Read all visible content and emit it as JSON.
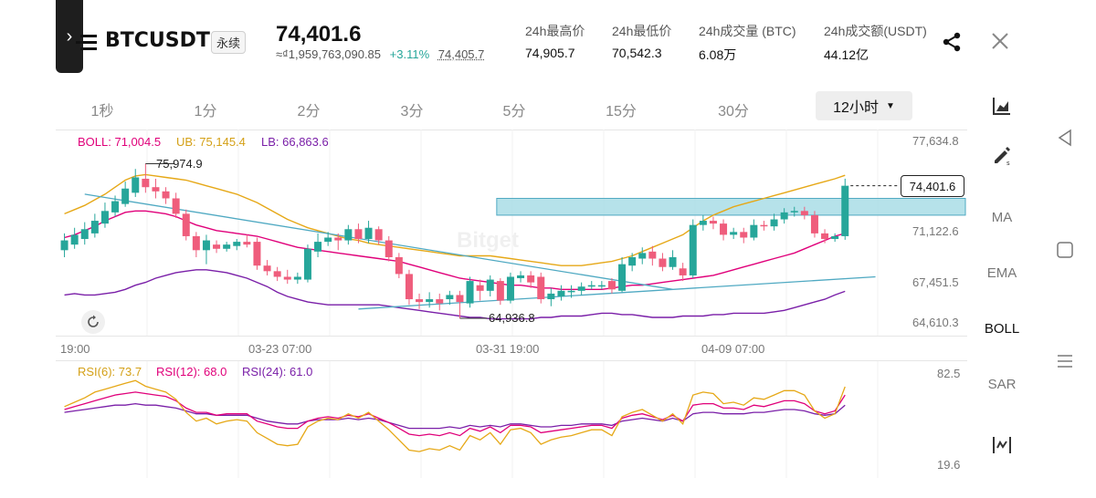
{
  "header": {
    "symbol": "BTCUSDT",
    "contract_tag": "永续",
    "last_price": "74,401.6",
    "fiat_value": "≈₫1,959,763,090.85",
    "change_pct": "+3.11%",
    "mark_price": "74,405.7",
    "stats": [
      {
        "label": "24h最高价",
        "value": "74,905.7"
      },
      {
        "label": "24h最低价",
        "value": "70,542.3"
      },
      {
        "label": "24h成交量 (BTC)",
        "value": "6.08万"
      },
      {
        "label": "24h成交额(USDT)",
        "value": "44.12亿"
      }
    ]
  },
  "timeframes": [
    "1秒",
    "1分",
    "2分",
    "3分",
    "5分",
    "15分",
    "30分"
  ],
  "active_timeframe": "12小时",
  "right_toolbar": {
    "ma": "MA",
    "ema": "EMA",
    "boll": "BOLL",
    "sar": "SAR"
  },
  "price_panel": {
    "boll_label": "BOLL: 71,004.5",
    "ub_label": "UB: 75,145.4",
    "lb_label": "LB: 66,863.6",
    "y_ticks": [
      "77,634.8",
      "71,122.6",
      "67,451.5",
      "64,610.3"
    ],
    "high_marker": "75,974.9",
    "low_marker": "64,936.8",
    "current_price_tag": "74,401.6",
    "watermark": "Bitget"
  },
  "time_axis": [
    "19:00",
    "03-23 07:00",
    "03-31 19:00",
    "04-09 07:00"
  ],
  "rsi_panel": {
    "rsi6_label": "RSI(6): 73.7",
    "rsi12_label": "RSI(12): 68.0",
    "rsi24_label": "RSI(24): 61.0",
    "y_top": "82.5",
    "y_bottom": "19.6"
  },
  "chart_data": {
    "type": "candlestick",
    "interval": "12小时",
    "price_range": [
      64610.3,
      77634.8
    ],
    "candles": [
      {
        "o": 69800,
        "c": 70500,
        "h": 71000,
        "l": 69300
      },
      {
        "o": 70200,
        "c": 70900,
        "h": 71400,
        "l": 69900
      },
      {
        "o": 70600,
        "c": 71300,
        "h": 71800,
        "l": 70200
      },
      {
        "o": 71000,
        "c": 71900,
        "h": 72400,
        "l": 70700
      },
      {
        "o": 71700,
        "c": 72600,
        "h": 73200,
        "l": 71400
      },
      {
        "o": 72500,
        "c": 73300,
        "h": 73700,
        "l": 72200
      },
      {
        "o": 73100,
        "c": 74200,
        "h": 74700,
        "l": 72900
      },
      {
        "o": 73900,
        "c": 75000,
        "h": 75600,
        "l": 73600
      },
      {
        "o": 74900,
        "c": 74300,
        "h": 75974.9,
        "l": 73900
      },
      {
        "o": 74300,
        "c": 74000,
        "h": 74900,
        "l": 73500
      },
      {
        "o": 74000,
        "c": 73500,
        "h": 74300,
        "l": 73100
      },
      {
        "o": 73500,
        "c": 72400,
        "h": 73900,
        "l": 72100
      },
      {
        "o": 72400,
        "c": 70800,
        "h": 72700,
        "l": 70500
      },
      {
        "o": 70800,
        "c": 69800,
        "h": 71100,
        "l": 69300
      },
      {
        "o": 69800,
        "c": 70500,
        "h": 70900,
        "l": 68800
      },
      {
        "o": 70200,
        "c": 69900,
        "h": 70500,
        "l": 69600
      },
      {
        "o": 69900,
        "c": 70200,
        "h": 70400,
        "l": 69700
      },
      {
        "o": 70100,
        "c": 70400,
        "h": 70600,
        "l": 69800
      },
      {
        "o": 70400,
        "c": 70200,
        "h": 70900,
        "l": 70000
      },
      {
        "o": 70400,
        "c": 68700,
        "h": 70700,
        "l": 68400
      },
      {
        "o": 68700,
        "c": 68300,
        "h": 69100,
        "l": 68000
      },
      {
        "o": 68300,
        "c": 67900,
        "h": 68600,
        "l": 67600
      },
      {
        "o": 67900,
        "c": 67700,
        "h": 68400,
        "l": 67400
      },
      {
        "o": 67700,
        "c": 67900,
        "h": 68200,
        "l": 67400
      },
      {
        "o": 67700,
        "c": 69900,
        "h": 70200,
        "l": 67500
      },
      {
        "o": 69700,
        "c": 70400,
        "h": 71000,
        "l": 69300
      },
      {
        "o": 70400,
        "c": 70700,
        "h": 71100,
        "l": 70100
      },
      {
        "o": 70700,
        "c": 70500,
        "h": 71000,
        "l": 69800
      },
      {
        "o": 70500,
        "c": 71300,
        "h": 71600,
        "l": 70200
      },
      {
        "o": 71300,
        "c": 70600,
        "h": 71700,
        "l": 70300
      },
      {
        "o": 70600,
        "c": 71400,
        "h": 71900,
        "l": 70300
      },
      {
        "o": 71300,
        "c": 70500,
        "h": 71500,
        "l": 70200
      },
      {
        "o": 70500,
        "c": 69300,
        "h": 70800,
        "l": 69000
      },
      {
        "o": 69300,
        "c": 68100,
        "h": 69600,
        "l": 67800
      },
      {
        "o": 68100,
        "c": 66300,
        "h": 68400,
        "l": 65900
      },
      {
        "o": 66300,
        "c": 66100,
        "h": 66700,
        "l": 65600
      },
      {
        "o": 66100,
        "c": 66300,
        "h": 66800,
        "l": 65700
      },
      {
        "o": 66300,
        "c": 66000,
        "h": 66700,
        "l": 65500
      },
      {
        "o": 66300,
        "c": 66600,
        "h": 66900,
        "l": 65900
      },
      {
        "o": 66600,
        "c": 66100,
        "h": 66900,
        "l": 64936.8
      },
      {
        "o": 66000,
        "c": 67600,
        "h": 67900,
        "l": 65700
      },
      {
        "o": 67300,
        "c": 66900,
        "h": 67700,
        "l": 66200
      },
      {
        "o": 66900,
        "c": 67700,
        "h": 68000,
        "l": 66500
      },
      {
        "o": 67600,
        "c": 66200,
        "h": 67800,
        "l": 65900
      },
      {
        "o": 66200,
        "c": 67900,
        "h": 68200,
        "l": 66000
      },
      {
        "o": 67800,
        "c": 68000,
        "h": 68300,
        "l": 67500
      },
      {
        "o": 68000,
        "c": 67500,
        "h": 68300,
        "l": 67100
      },
      {
        "o": 67900,
        "c": 66300,
        "h": 68200,
        "l": 66000
      },
      {
        "o": 66300,
        "c": 66700,
        "h": 67100,
        "l": 65800
      },
      {
        "o": 66500,
        "c": 66900,
        "h": 67300,
        "l": 66200
      },
      {
        "o": 66800,
        "c": 66900,
        "h": 67300,
        "l": 66400
      },
      {
        "o": 66900,
        "c": 67200,
        "h": 67500,
        "l": 66600
      },
      {
        "o": 67200,
        "c": 67300,
        "h": 67600,
        "l": 67000
      },
      {
        "o": 67300,
        "c": 67300,
        "h": 67600,
        "l": 67000
      },
      {
        "o": 67600,
        "c": 67000,
        "h": 67800,
        "l": 66700
      },
      {
        "o": 66900,
        "c": 68800,
        "h": 69300,
        "l": 66800
      },
      {
        "o": 68700,
        "c": 69300,
        "h": 69600,
        "l": 68300
      },
      {
        "o": 69200,
        "c": 69600,
        "h": 70000,
        "l": 68800
      },
      {
        "o": 69700,
        "c": 69200,
        "h": 70100,
        "l": 68700
      },
      {
        "o": 69200,
        "c": 68600,
        "h": 69600,
        "l": 68300
      },
      {
        "o": 68600,
        "c": 69300,
        "h": 69800,
        "l": 68400
      },
      {
        "o": 68500,
        "c": 68000,
        "h": 68900,
        "l": 67600
      },
      {
        "o": 68000,
        "c": 71600,
        "h": 72000,
        "l": 67800
      },
      {
        "o": 71600,
        "c": 71900,
        "h": 72300,
        "l": 71200
      },
      {
        "o": 71900,
        "c": 71700,
        "h": 72200,
        "l": 71300
      },
      {
        "o": 71700,
        "c": 70900,
        "h": 72000,
        "l": 70500
      },
      {
        "o": 70900,
        "c": 71100,
        "h": 71400,
        "l": 70600
      },
      {
        "o": 71100,
        "c": 70700,
        "h": 71400,
        "l": 70300
      },
      {
        "o": 70700,
        "c": 71600,
        "h": 72000,
        "l": 70500
      },
      {
        "o": 71600,
        "c": 71500,
        "h": 71900,
        "l": 71200
      },
      {
        "o": 71500,
        "c": 72000,
        "h": 72400,
        "l": 71200
      },
      {
        "o": 72000,
        "c": 72500,
        "h": 72800,
        "l": 71700
      },
      {
        "o": 72500,
        "c": 72600,
        "h": 72900,
        "l": 72200
      },
      {
        "o": 72600,
        "c": 72300,
        "h": 72900,
        "l": 72000
      },
      {
        "o": 72300,
        "c": 71000,
        "h": 72600,
        "l": 70700
      },
      {
        "o": 71000,
        "c": 70600,
        "h": 71300,
        "l": 70300
      },
      {
        "o": 70600,
        "c": 70800,
        "h": 71000,
        "l": 70400
      },
      {
        "o": 70800,
        "c": 74401.6,
        "h": 74905.7,
        "l": 70542.3
      }
    ],
    "bollinger": {
      "mid": [
        70700,
        70900,
        71200,
        71500,
        71900,
        72200,
        72500,
        72600,
        72600,
        72500,
        72400,
        72200,
        71900,
        71600,
        71400,
        71200,
        71100,
        71000,
        70900,
        70800,
        70600,
        70400,
        70200,
        70000,
        69900,
        69800,
        69700,
        69600,
        69500,
        69400,
        69300,
        69200,
        69100,
        69000,
        68800,
        68600,
        68400,
        68200,
        68000,
        67800,
        67700,
        67600,
        67500,
        67400,
        67300,
        67300,
        67200,
        67100,
        67100,
        67000,
        67000,
        67000,
        67000,
        67000,
        67100,
        67200,
        67300,
        67300,
        67400,
        67500,
        67600,
        67700,
        67800,
        67900,
        68000,
        68200,
        68400,
        68600,
        68800,
        69000,
        69200,
        69400,
        69600,
        69900,
        70200,
        70500,
        70800,
        71004.5
      ],
      "upper": [
        72400,
        72700,
        73000,
        73400,
        73800,
        74300,
        74800,
        75100,
        75200,
        75100,
        75000,
        74900,
        74800,
        74600,
        74400,
        74200,
        74000,
        73800,
        73500,
        73200,
        72800,
        72400,
        72000,
        71700,
        71400,
        71200,
        71000,
        70800,
        70600,
        70500,
        70300,
        70200,
        70100,
        70000,
        69900,
        69800,
        69700,
        69600,
        69500,
        69400,
        69400,
        69400,
        69400,
        69300,
        69200,
        69100,
        69000,
        68900,
        68800,
        68700,
        68700,
        68700,
        68800,
        68900,
        69000,
        69200,
        69400,
        69700,
        70000,
        70300,
        70600,
        70900,
        71400,
        71900,
        72300,
        72600,
        72900,
        73100,
        73300,
        73500,
        73700,
        73900,
        74100,
        74300,
        74500,
        74700,
        74900,
        75145.4
      ],
      "lower": [
        66600,
        66700,
        66600,
        66600,
        66700,
        66800,
        67000,
        67300,
        67500,
        67800,
        68000,
        68200,
        68300,
        68400,
        68400,
        68300,
        68200,
        68000,
        67800,
        67500,
        67200,
        66800,
        66500,
        66300,
        66100,
        66000,
        65900,
        65900,
        65900,
        65900,
        65900,
        65900,
        65800,
        65700,
        65600,
        65500,
        65400,
        65300,
        65200,
        65100,
        65000,
        65000,
        64900,
        64900,
        64900,
        64900,
        64900,
        65000,
        65000,
        65100,
        65100,
        65100,
        65200,
        65300,
        65300,
        65200,
        65200,
        65100,
        65000,
        65000,
        65000,
        65100,
        65100,
        65100,
        65200,
        65200,
        65300,
        65300,
        65300,
        65300,
        65400,
        65500,
        65700,
        65900,
        66100,
        66300,
        66600,
        66863.6
      ]
    },
    "trendlines": [
      {
        "name": "descending",
        "from": {
          "candle": 2,
          "price": 73800
        },
        "to": {
          "candle": 60,
          "price": 67000
        }
      },
      {
        "name": "ascending",
        "from": {
          "candle": 29,
          "price": 65600
        },
        "to": {
          "candle": 80,
          "price": 67900
        }
      }
    ],
    "resistance_zone": {
      "from_candle": 43,
      "price_top": 73500,
      "price_bottom": 72300
    },
    "rsi": {
      "range": [
        19.6,
        82.5
      ],
      "rsi6": [
        60,
        63,
        66,
        70,
        72,
        74,
        76,
        78,
        74,
        72,
        70,
        65,
        56,
        50,
        52,
        48,
        50,
        51,
        50,
        42,
        38,
        34,
        33,
        34,
        46,
        50,
        52,
        51,
        55,
        52,
        56,
        50,
        44,
        37,
        30,
        29,
        31,
        30,
        33,
        30,
        40,
        37,
        42,
        34,
        44,
        45,
        42,
        34,
        37,
        39,
        40,
        42,
        44,
        44,
        40,
        53,
        56,
        58,
        54,
        50,
        55,
        48,
        68,
        70,
        69,
        62,
        63,
        61,
        66,
        65,
        68,
        71,
        71,
        68,
        57,
        52,
        55,
        73.7
      ],
      "rsi12": [
        58,
        60,
        62,
        64,
        66,
        68,
        69,
        70,
        69,
        68,
        67,
        64,
        59,
        56,
        56,
        54,
        55,
        55,
        55,
        50,
        48,
        46,
        45,
        45,
        50,
        52,
        53,
        52,
        54,
        53,
        55,
        52,
        49,
        45,
        41,
        40,
        41,
        40,
        42,
        40,
        45,
        43,
        46,
        42,
        47,
        47,
        46,
        42,
        43,
        44,
        45,
        46,
        47,
        47,
        45,
        52,
        54,
        55,
        53,
        51,
        54,
        50,
        61,
        62,
        62,
        59,
        59,
        58,
        61,
        60,
        62,
        64,
        64,
        62,
        57,
        55,
        57,
        68.0
      ],
      "rsi24": [
        56,
        57,
        58,
        59,
        60,
        61,
        61,
        62,
        61,
        61,
        60,
        59,
        57,
        55,
        55,
        54,
        54,
        54,
        54,
        52,
        50,
        49,
        48,
        48,
        50,
        51,
        51,
        51,
        52,
        51,
        52,
        51,
        49,
        47,
        45,
        45,
        45,
        45,
        46,
        45,
        47,
        46,
        47,
        46,
        48,
        48,
        47,
        46,
        46,
        47,
        47,
        48,
        48,
        48,
        47,
        50,
        51,
        52,
        51,
        50,
        52,
        50,
        55,
        56,
        56,
        55,
        55,
        55,
        56,
        56,
        57,
        58,
        58,
        57,
        55,
        54,
        55,
        61.0
      ]
    },
    "series_colors": {
      "up": "#26a69a",
      "down": "#ef5d7c",
      "boll_mid": "#e0007a",
      "boll_upper": "#e6a817",
      "boll_lower": "#7a1fa8",
      "trendline": "#4fa9c2",
      "zone": "#a9dde6",
      "rsi6": "#e6a817",
      "rsi12": "#e0007a",
      "rsi24": "#7a1fa8"
    }
  }
}
